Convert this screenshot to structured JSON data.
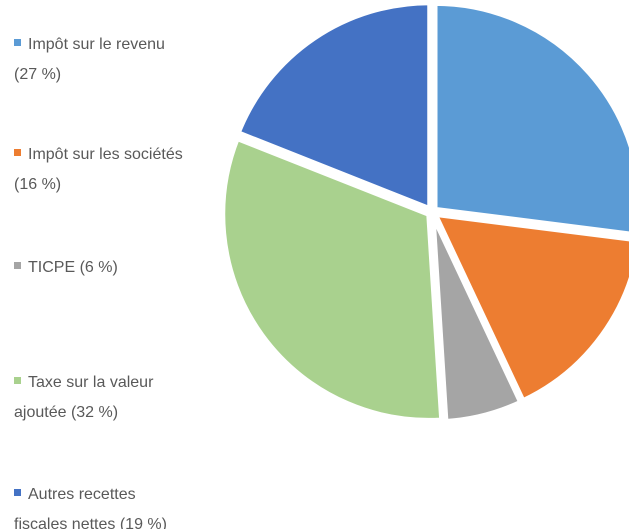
{
  "chart_data": {
    "type": "pie",
    "categories": [
      "Impôt sur le revenu",
      "Impôt sur les sociétés",
      "TICPE",
      "Taxe sur la valeur ajoutée",
      "Autres recettes fiscales nettes"
    ],
    "values": [
      27,
      16,
      6,
      32,
      19
    ],
    "value_labels": [
      "(27 %)",
      "(16 %)",
      "(6 %)",
      "(32 %)",
      "(19 %)"
    ],
    "colors": [
      "#5b9bd5",
      "#ed7d31",
      "#a5a5a5",
      "#a9d18e",
      "#4472c4"
    ],
    "legend": "left"
  }
}
